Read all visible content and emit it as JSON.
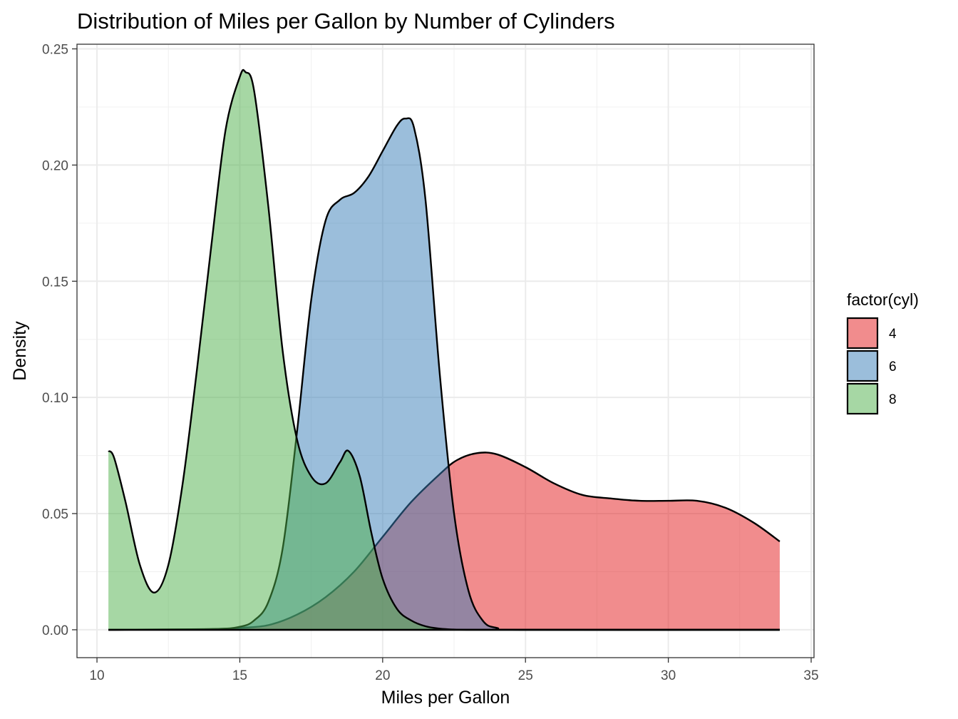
{
  "chart_data": {
    "type": "area",
    "title": "Distribution of Miles per Gallon by Number of Cylinders",
    "xlabel": "Miles per Gallon",
    "ylabel": "Density",
    "xlim": [
      9.3,
      35.1
    ],
    "ylim": [
      -0.012,
      0.252
    ],
    "x_ticks": [
      "10",
      "15",
      "20",
      "25",
      "30",
      "35"
    ],
    "y_ticks": [
      "0.00",
      "0.05",
      "0.10",
      "0.15",
      "0.20",
      "0.25"
    ],
    "x_tick_values": [
      10,
      15,
      20,
      25,
      30,
      35
    ],
    "y_tick_values": [
      0,
      0.05,
      0.1,
      0.15,
      0.2,
      0.25
    ],
    "grid": true,
    "legend": {
      "title": "factor(cyl)",
      "position": "right",
      "items": [
        "4",
        "6",
        "8"
      ]
    },
    "series": [
      {
        "name": "4",
        "color": "#E41A1C",
        "x": [
          10.4,
          14.0,
          15.0,
          16.0,
          17.0,
          18.0,
          19.0,
          20.0,
          21.0,
          22.0,
          22.6,
          23.3,
          24.0,
          25.0,
          26.0,
          27.0,
          28.0,
          29.0,
          30.0,
          31.0,
          32.0,
          33.0,
          33.9
        ],
        "y": [
          0.0,
          0.0003,
          0.0008,
          0.002,
          0.0065,
          0.014,
          0.025,
          0.04,
          0.055,
          0.067,
          0.073,
          0.076,
          0.0755,
          0.07,
          0.063,
          0.058,
          0.0565,
          0.0555,
          0.0555,
          0.0555,
          0.0525,
          0.046,
          0.038
        ]
      },
      {
        "name": "6",
        "color": "#377EB8",
        "x": [
          10.4,
          14.0,
          15.0,
          15.5,
          16.0,
          16.5,
          17.0,
          17.5,
          18.0,
          18.5,
          19.0,
          19.5,
          20.0,
          20.5,
          20.8,
          21.1,
          21.5,
          22.0,
          22.5,
          23.0,
          23.5,
          24.0,
          25.0,
          33.9
        ],
        "y": [
          0.0,
          0.0003,
          0.0013,
          0.004,
          0.012,
          0.035,
          0.085,
          0.142,
          0.176,
          0.185,
          0.188,
          0.195,
          0.206,
          0.217,
          0.22,
          0.216,
          0.185,
          0.11,
          0.05,
          0.017,
          0.004,
          0.0008,
          0.0,
          0.0
        ]
      },
      {
        "name": "8",
        "color": "#4DAF4A",
        "x": [
          10.4,
          10.6,
          11.0,
          11.5,
          12.0,
          12.5,
          13.0,
          13.5,
          14.0,
          14.5,
          15.0,
          15.2,
          15.5,
          16.0,
          16.5,
          17.0,
          17.5,
          18.0,
          18.5,
          18.8,
          19.2,
          19.6,
          20.0,
          20.5,
          21.0,
          21.5,
          22.0,
          22.5,
          23.0,
          24.0,
          25.0,
          33.9
        ],
        "y": [
          0.077,
          0.074,
          0.055,
          0.028,
          0.016,
          0.028,
          0.063,
          0.112,
          0.165,
          0.215,
          0.238,
          0.24,
          0.232,
          0.182,
          0.12,
          0.082,
          0.066,
          0.063,
          0.072,
          0.077,
          0.066,
          0.042,
          0.022,
          0.009,
          0.004,
          0.0015,
          0.0005,
          0.0001,
          0.0,
          0.0,
          0.0,
          0.0
        ]
      }
    ]
  }
}
